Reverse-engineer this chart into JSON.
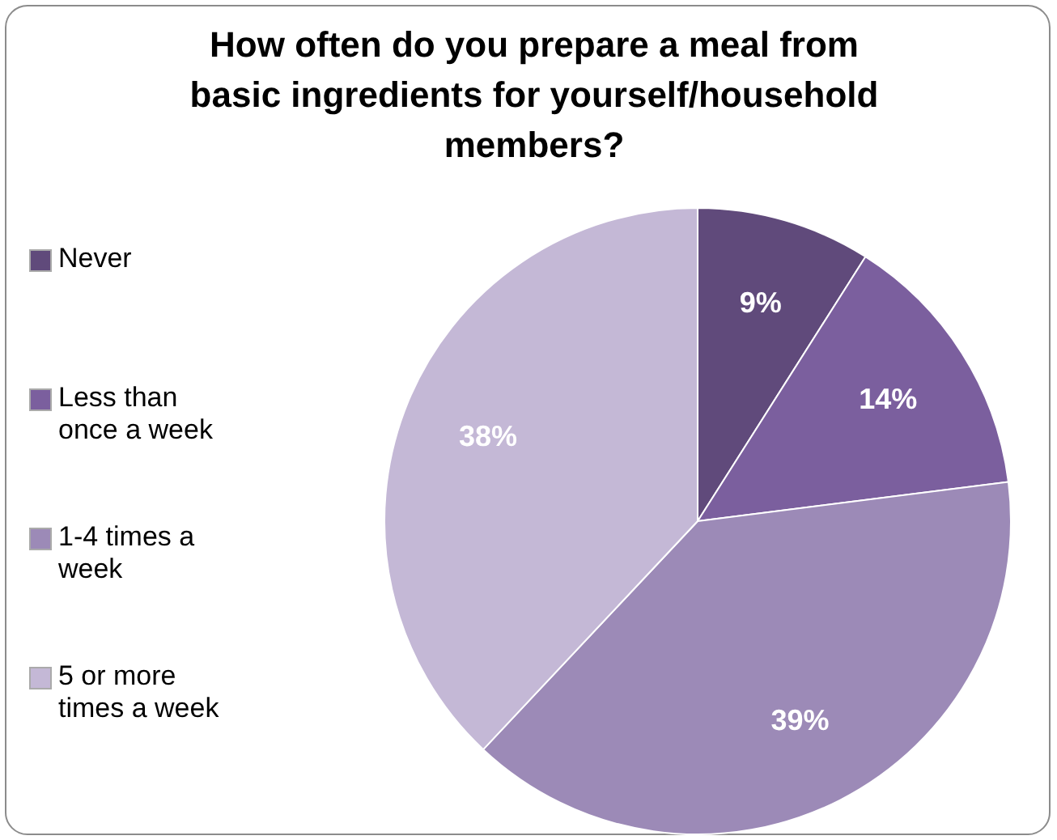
{
  "chart_data": {
    "type": "pie",
    "title": "How often do you prepare a meal from basic ingredients for yourself/household members?",
    "categories": [
      "Never",
      "Less than once a week",
      "1-4 times a week",
      "5 or more times a week"
    ],
    "values": [
      9,
      14,
      39,
      38
    ],
    "colors": [
      "#604a7b",
      "#7b5f9e",
      "#9c8ab7",
      "#c4b8d6"
    ],
    "value_labels": [
      "9%",
      "14%",
      "39%",
      "38%"
    ],
    "legend": "left"
  }
}
